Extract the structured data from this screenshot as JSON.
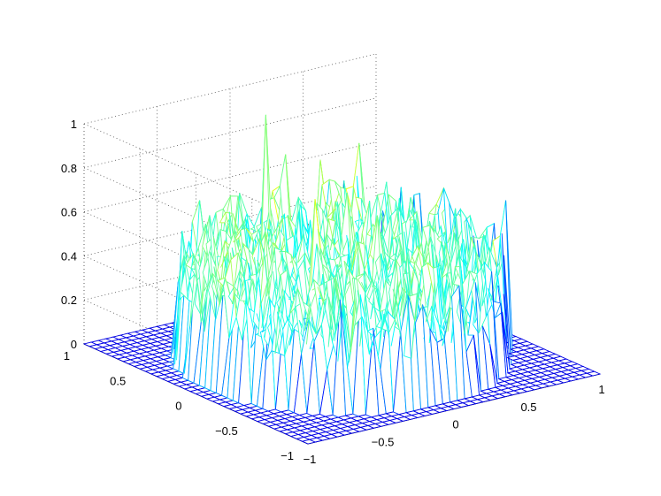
{
  "chart_data": {
    "type": "mesh3d",
    "title": "",
    "xlabel": "",
    "ylabel": "",
    "zlabel": "",
    "xlim": [
      -1,
      1
    ],
    "ylim": [
      -1,
      1
    ],
    "zlim": [
      0,
      1
    ],
    "x_ticks": [
      "-1",
      "-0.5",
      "0",
      "0.5",
      "1"
    ],
    "y_ticks": [
      "-1",
      "-0.5",
      "0",
      "0.5",
      "1"
    ],
    "z_ticks": [
      "0",
      "0.2",
      "0.4",
      "0.6",
      "0.8",
      "1"
    ],
    "grid": true,
    "colormap": "jet",
    "grid_resolution": 41,
    "description_values": {
      "support_region": "disk of radius ~0.9 centred at origin",
      "value_outside": 0,
      "typical_inside_range": [
        0.2,
        0.6
      ],
      "peak": {
        "x": -0.1,
        "y": 0.55,
        "z": 1.0
      }
    }
  }
}
